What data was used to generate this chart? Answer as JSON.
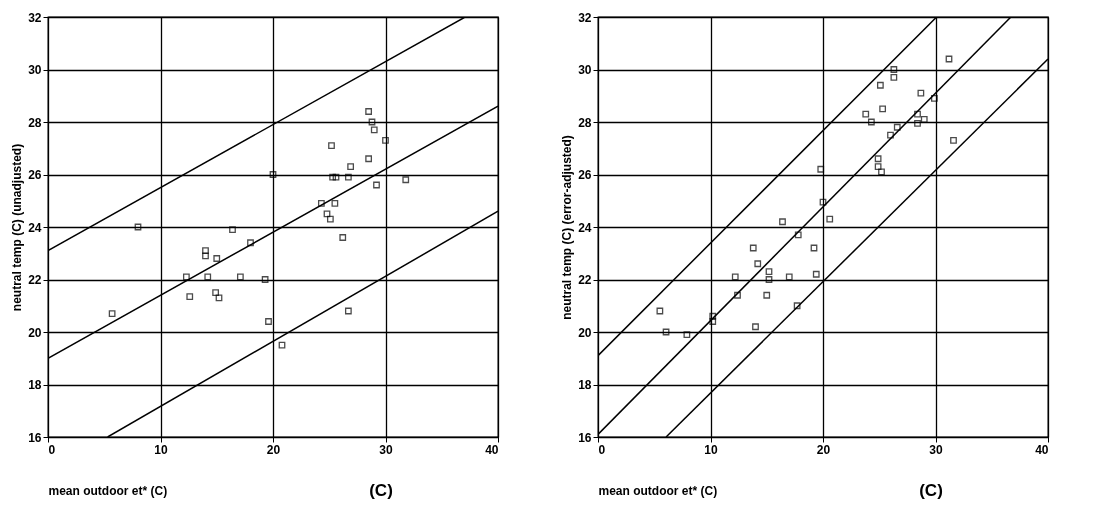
{
  "chart_data": [
    {
      "type": "scatter",
      "xlabel": "mean outdoor et* (C)",
      "ylabel": "neutral temp (C) (unadjusted)",
      "annotations": [
        "(C)"
      ],
      "xlim": [
        0,
        40
      ],
      "ylim": [
        16,
        32
      ],
      "xticks": [
        0,
        10,
        20,
        30,
        40
      ],
      "yticks": [
        16,
        18,
        20,
        22,
        24,
        26,
        28,
        30,
        32
      ],
      "grid": true,
      "legend": false,
      "series": [
        {
          "marker": "square",
          "color": "#000000",
          "x": [
            5.7,
            8,
            12.3,
            12.6,
            14,
            14,
            14.2,
            15,
            14.9,
            15.2,
            16.4,
            17.1,
            18,
            19.3,
            19.6,
            20,
            20.8,
            24.3,
            24.8,
            25.1,
            25.2,
            25.3,
            25.6,
            25.5,
            26.2,
            26.7,
            26.9,
            26.7,
            28.5,
            28.8,
            29,
            28.5,
            29.2,
            30,
            31.8
          ],
          "values": [
            20.7,
            24.0,
            22.1,
            21.35,
            23.1,
            22.9,
            22.1,
            22.8,
            21.5,
            21.3,
            23.9,
            22.1,
            23.4,
            22.0,
            20.4,
            26.0,
            19.5,
            24.9,
            24.5,
            24.3,
            27.1,
            25.9,
            25.9,
            24.9,
            23.6,
            25.9,
            26.3,
            20.8,
            28.4,
            28.0,
            27.7,
            26.6,
            25.6,
            27.3,
            25.8
          ]
        },
        {
          "type": "line",
          "color": "#000000",
          "x": [
            0,
            37
          ],
          "values": [
            23.1,
            31.98
          ]
        },
        {
          "type": "line",
          "color": "#000000",
          "x": [
            0,
            40
          ],
          "values": [
            19.0,
            28.6
          ]
        },
        {
          "type": "line",
          "color": "#000000",
          "x": [
            5.3,
            40
          ],
          "values": [
            16.0,
            24.6
          ]
        }
      ]
    },
    {
      "type": "scatter",
      "xlabel": "mean outdoor et* (C)",
      "ylabel": "neutral temp (C) (error-adjusted)",
      "annotations": [
        "(C)"
      ],
      "xlim": [
        0,
        40
      ],
      "ylim": [
        16,
        32
      ],
      "xticks": [
        0,
        10,
        20,
        30,
        40
      ],
      "yticks": [
        16,
        18,
        20,
        22,
        24,
        26,
        28,
        30,
        32
      ],
      "grid": true,
      "legend": false,
      "series": [
        {
          "marker": "square",
          "color": "#000000",
          "x": [
            5.5,
            6.05,
            7.9,
            10.2,
            10.2,
            12.2,
            12.4,
            13.8,
            14.2,
            14.0,
            15.2,
            15.2,
            15.0,
            16.4,
            17.0,
            17.8,
            17.7,
            19.2,
            19.4,
            19.8,
            20.0,
            20.6,
            23.8,
            24.3,
            25.1,
            25.3,
            24.9,
            24.9,
            25.2,
            26.3,
            26.3,
            26.0,
            26.6,
            28.4,
            28.4,
            29.0,
            28.7,
            29.9,
            31.2,
            31.6
          ],
          "values": [
            20.8,
            20.0,
            19.9,
            20.6,
            20.4,
            22.1,
            21.4,
            23.2,
            22.6,
            20.2,
            22.3,
            22.0,
            21.4,
            24.2,
            22.1,
            23.7,
            21.0,
            23.2,
            22.2,
            26.2,
            24.95,
            24.3,
            28.3,
            28.0,
            29.4,
            28.5,
            26.6,
            26.3,
            26.1,
            29.7,
            30.0,
            27.5,
            27.8,
            28.3,
            27.95,
            28.1,
            29.1,
            28.9,
            30.4,
            27.3
          ]
        },
        {
          "type": "line",
          "color": "#000000",
          "x": [
            0,
            30.1
          ],
          "values": [
            19.1,
            32.0
          ]
        },
        {
          "type": "line",
          "color": "#000000",
          "x": [
            0,
            36.7
          ],
          "values": [
            16.1,
            32.0
          ]
        },
        {
          "type": "line",
          "color": "#000000",
          "x": [
            6.05,
            40
          ],
          "values": [
            16.0,
            30.4
          ]
        }
      ]
    }
  ]
}
